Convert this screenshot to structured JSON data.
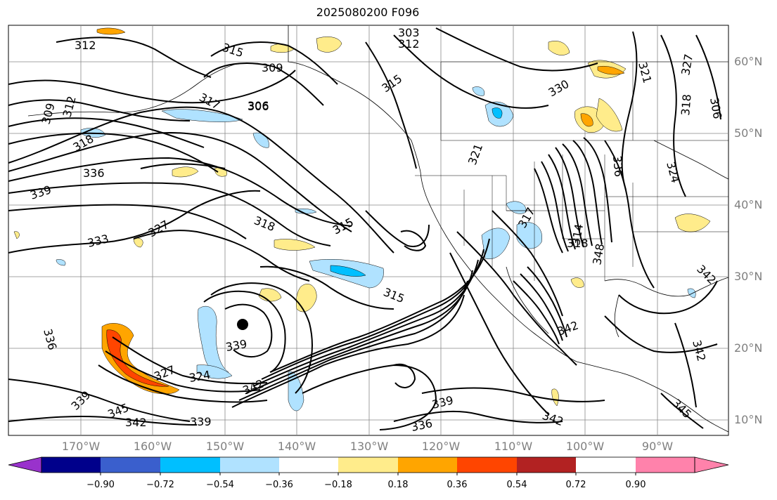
{
  "title": "2025080200 F096",
  "lat_labels": [
    "60°N",
    "50°N",
    "40°N",
    "30°N",
    "20°N",
    "10°N"
  ],
  "lon_labels": [
    "170°W",
    "160°W",
    "150°W",
    "140°W",
    "130°W",
    "120°W",
    "110°W",
    "100°W",
    "90°W"
  ],
  "colorbar": {
    "ticks": [
      "−0.90",
      "−0.72",
      "−0.54",
      "−0.36",
      "−0.18",
      "0.18",
      "0.36",
      "0.54",
      "0.72",
      "0.90"
    ],
    "colors": [
      "#9932cc",
      "#00008b",
      "#3a5fcd",
      "#00bfff",
      "#b0e2ff",
      "#ffffff",
      "#ffec8b",
      "#ffa500",
      "#ff4500",
      "#b22222",
      "#ff82ab"
    ]
  },
  "contour_labels": [
    "312",
    "315",
    "309",
    "306",
    "303",
    "312",
    "315",
    "309",
    "312",
    "317",
    "306",
    "318",
    "336",
    "339",
    "315",
    "330",
    "321",
    "318",
    "306",
    "327",
    "321",
    "324",
    "336",
    "318",
    "315",
    "327",
    "333",
    "315",
    "317",
    "318",
    "348",
    "314",
    "339",
    "336",
    "339",
    "327",
    "324",
    "342",
    "345",
    "342",
    "339",
    "342",
    "339",
    "336",
    "342",
    "342",
    "345",
    "342"
  ]
}
